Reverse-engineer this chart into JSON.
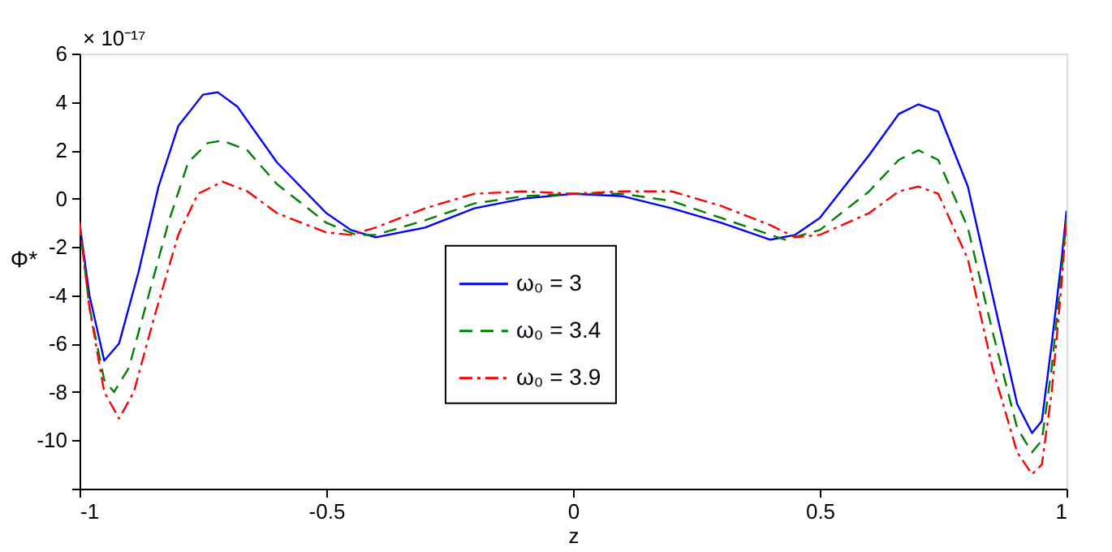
{
  "chart_data": {
    "type": "line",
    "xlabel": "z",
    "ylabel": "Φ*",
    "annotations": [
      "× 10⁻¹⁷"
    ],
    "xlim": [
      -1,
      1
    ],
    "xticks": [
      -1,
      -0.5,
      0,
      0.5,
      1
    ],
    "ylim": [
      -12,
      6
    ],
    "yticks": [
      6,
      4,
      2,
      0,
      -2,
      -4,
      -6,
      -8,
      -10,
      {
        "value": -12,
        "label": null
      }
    ],
    "grid": false,
    "legend": "center",
    "marker": "none",
    "series": [
      {
        "name": "ω₀ = 3",
        "color": "#0000ff",
        "line_style": "solid",
        "x": [
          -1,
          -0.98,
          -0.95,
          -0.92,
          -0.88,
          -0.84,
          -0.8,
          -0.75,
          -0.72,
          -0.68,
          -0.6,
          -0.5,
          -0.45,
          -0.4,
          -0.3,
          -0.2,
          -0.1,
          0,
          0.1,
          0.2,
          0.3,
          0.4,
          0.45,
          0.5,
          0.6,
          0.66,
          0.7,
          0.74,
          0.8,
          0.85,
          0.9,
          0.93,
          0.95,
          0.97,
          0.99,
          1
        ],
        "values": [
          -1,
          -4,
          -6.7,
          -6,
          -3,
          0.5,
          3,
          4.3,
          4.4,
          3.8,
          1.5,
          -0.6,
          -1.3,
          -1.6,
          -1.2,
          -0.4,
          0,
          0.2,
          0.1,
          -0.4,
          -1.0,
          -1.7,
          -1.5,
          -0.8,
          1.8,
          3.5,
          3.9,
          3.6,
          0.5,
          -4,
          -8.5,
          -9.7,
          -9.2,
          -6,
          -2.5,
          -0.5
        ]
      },
      {
        "name": "ω₀ = 3.4",
        "color": "#008000",
        "line_style": "dashed",
        "x": [
          -1,
          -0.98,
          -0.95,
          -0.93,
          -0.9,
          -0.86,
          -0.82,
          -0.78,
          -0.74,
          -0.71,
          -0.66,
          -0.6,
          -0.5,
          -0.44,
          -0.4,
          -0.3,
          -0.2,
          -0.1,
          0,
          0.1,
          0.2,
          0.3,
          0.4,
          0.43,
          0.5,
          0.6,
          0.66,
          0.7,
          0.74,
          0.8,
          0.85,
          0.9,
          0.93,
          0.95,
          0.97,
          0.99,
          1
        ],
        "values": [
          -1,
          -4.5,
          -7.5,
          -8,
          -7,
          -4,
          -1,
          1.5,
          2.3,
          2.4,
          2.0,
          0.6,
          -1.0,
          -1.5,
          -1.5,
          -0.9,
          -0.2,
          0.1,
          0.2,
          0.2,
          -0.1,
          -0.8,
          -1.5,
          -1.7,
          -1.3,
          0.3,
          1.6,
          2.0,
          1.6,
          -1.2,
          -5.5,
          -9.5,
          -10.5,
          -10,
          -7,
          -3,
          -0.8
        ]
      },
      {
        "name": "ω₀ = 3.9",
        "color": "#ff0000",
        "line_style": "dashdot",
        "x": [
          -1,
          -0.98,
          -0.95,
          -0.92,
          -0.89,
          -0.85,
          -0.8,
          -0.76,
          -0.71,
          -0.66,
          -0.6,
          -0.5,
          -0.45,
          -0.4,
          -0.3,
          -0.2,
          -0.1,
          0,
          0.1,
          0.2,
          0.3,
          0.4,
          0.45,
          0.5,
          0.6,
          0.66,
          0.7,
          0.74,
          0.8,
          0.85,
          0.9,
          0.93,
          0.95,
          0.97,
          0.99,
          1
        ],
        "values": [
          -1,
          -4.5,
          -8,
          -9.1,
          -8,
          -5,
          -1.5,
          0.2,
          0.7,
          0.3,
          -0.6,
          -1.4,
          -1.5,
          -1.2,
          -0.4,
          0.2,
          0.3,
          0.2,
          0.3,
          0.3,
          -0.3,
          -1.1,
          -1.6,
          -1.5,
          -0.6,
          0.3,
          0.5,
          0.2,
          -2.5,
          -7,
          -10.5,
          -11.4,
          -11,
          -8,
          -3.5,
          -0.8
        ]
      }
    ]
  }
}
